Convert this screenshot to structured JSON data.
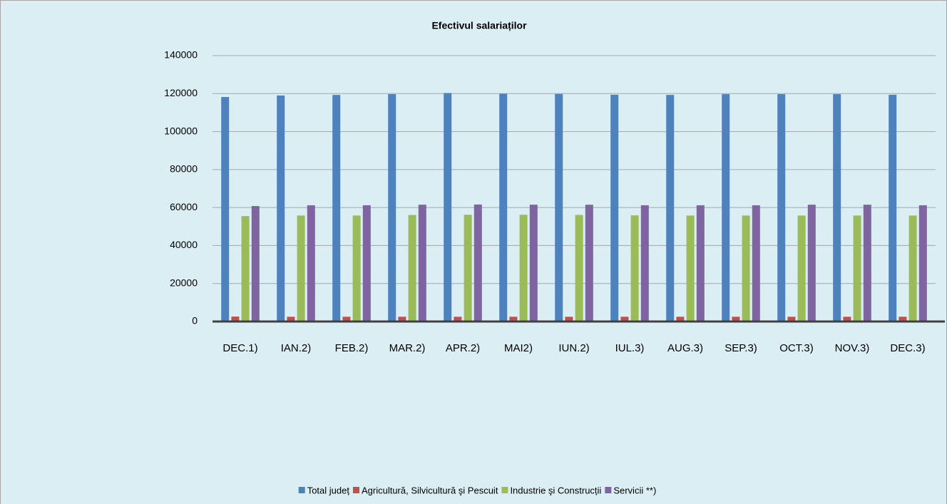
{
  "chart_data": {
    "type": "bar",
    "title": "Efectivul salariaților",
    "categories": [
      "DEC.1)",
      "IAN.2)",
      "FEB.2)",
      "MAR.2)",
      "APR.2)",
      "MAI2)",
      "IUN.2)",
      "IUL.3)",
      "AUG.3)",
      "SEP.3)",
      "OCT.3)",
      "NOV.3)",
      "DEC.3)"
    ],
    "series": [
      {
        "name": "Total județ",
        "color": "#4f81bd",
        "values": [
          118200,
          119000,
          119300,
          119700,
          120300,
          119900,
          119800,
          119400,
          119300,
          119700,
          119700,
          119700,
          119400
        ]
      },
      {
        "name": "Agricultură, Silvicultură şi Pescuit",
        "color": "#c0504d",
        "values": [
          2600,
          2500,
          2500,
          2500,
          2500,
          2500,
          2500,
          2500,
          2500,
          2500,
          2500,
          2500,
          2500
        ]
      },
      {
        "name": "Industrie şi Construcții",
        "color": "#9bbb59",
        "values": [
          55500,
          55800,
          55800,
          56100,
          56200,
          56200,
          56100,
          55900,
          55800,
          55800,
          55800,
          55800,
          55800
        ]
      },
      {
        "name": "Servicii **)",
        "color": "#8064a2",
        "values": [
          60800,
          61200,
          61200,
          61500,
          61600,
          61500,
          61500,
          61200,
          61200,
          61200,
          61500,
          61500,
          61200
        ]
      }
    ],
    "ylim": [
      0,
      140000
    ],
    "yticks": [
      0,
      20000,
      40000,
      60000,
      80000,
      100000,
      120000,
      140000
    ],
    "grid": true
  }
}
